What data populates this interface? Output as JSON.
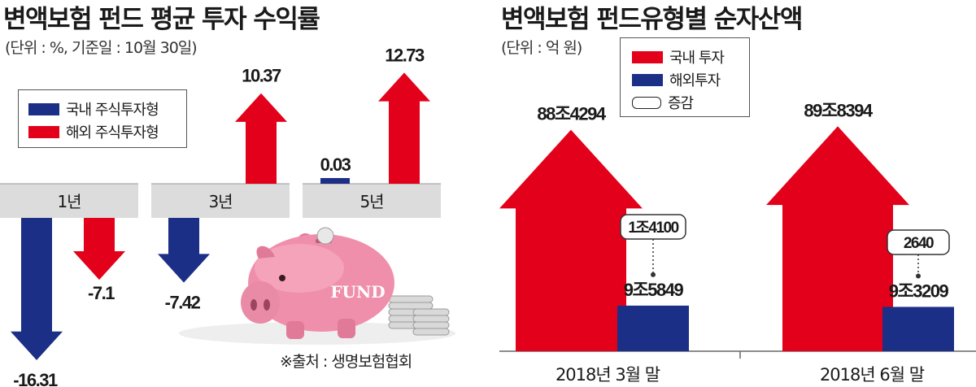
{
  "left": {
    "title": "변액보험 펀드 평균 투자 수익률",
    "subtitle": "(단위 : %, 기준일 : 10월 30일)",
    "legend": [
      "국내 주식투자형",
      "해외 주식투자형"
    ],
    "source": "※출처 : 생명보험협회",
    "piggy_label": "FUND"
  },
  "right": {
    "title": "변액보험 펀드유형별 순자산액",
    "subtitle": "(단위 : 억 원)",
    "legend": [
      "국내 투자",
      "해외투자",
      "증감"
    ]
  },
  "colors": {
    "red": "#e3001b",
    "blue": "#1c2f87",
    "band": "#dcdcdc",
    "pig": "#ee8fab"
  },
  "chart_data": [
    {
      "type": "bar",
      "title": "변액보험 펀드 평균 투자 수익률",
      "categories": [
        "1년",
        "3년",
        "5년"
      ],
      "series": [
        {
          "name": "국내 주식투자형",
          "values": [
            -16.31,
            -7.42,
            0.03
          ],
          "labels": [
            "-16.31",
            "-7.42",
            "0.03"
          ]
        },
        {
          "name": "해외 주식투자형",
          "values": [
            -7.1,
            10.37,
            12.73
          ],
          "labels": [
            "-7.1",
            "10.37",
            "12.73"
          ]
        }
      ]
    },
    {
      "type": "bar",
      "title": "변액보험 펀드유형별 순자산액",
      "categories": [
        "2018년 3월 말",
        "2018년 6월 말"
      ],
      "series": [
        {
          "name": "국내 투자",
          "values": [
            884294,
            898394
          ],
          "labels": [
            "88조4294",
            "89조8394"
          ]
        },
        {
          "name": "해외투자",
          "values": [
            95849,
            93209
          ],
          "labels": [
            "9조5849",
            "9조3209"
          ]
        },
        {
          "name": "증감",
          "values": [
            14100,
            2640
          ],
          "labels": [
            "1조4100",
            "2640"
          ]
        }
      ]
    }
  ]
}
